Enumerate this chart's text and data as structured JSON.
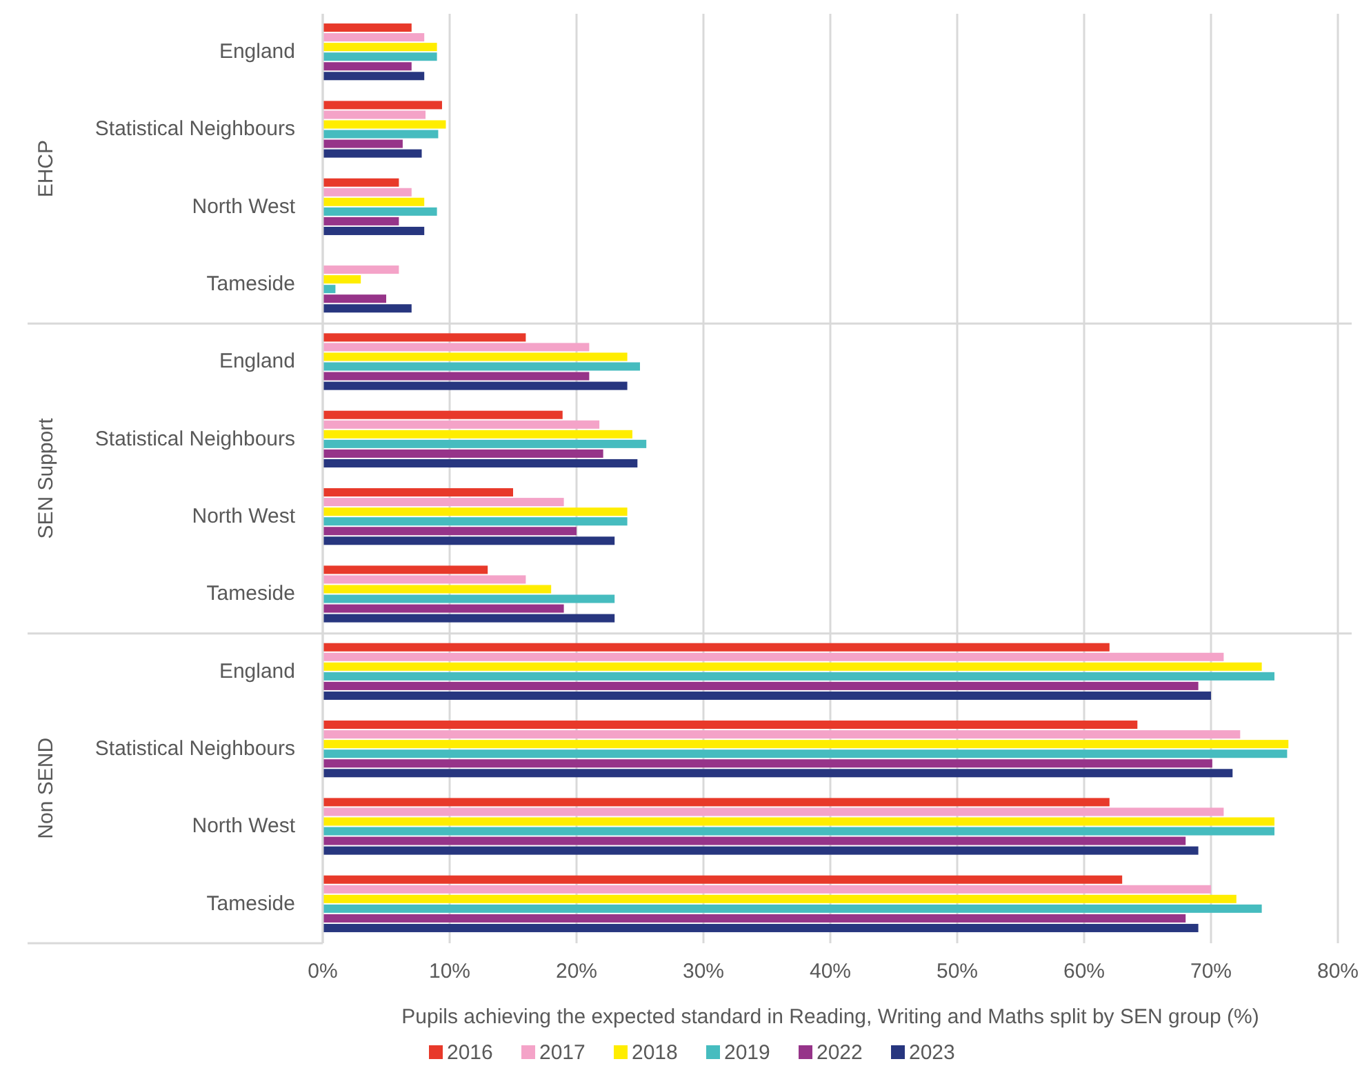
{
  "chart_data": {
    "type": "bar",
    "orientation": "horizontal",
    "xlabel": "Pupils achieving the expected standard in Reading, Writing and Maths split by SEN group (%)",
    "categories": [
      "England",
      "Statistical Neighbours",
      "North West",
      "Tameside",
      "England",
      "Statistical Neighbours",
      "North West",
      "Tameside",
      "England",
      "Statistical Neighbours",
      "North West",
      "Tameside"
    ],
    "annotations": [
      "EHCP",
      "SEN Support",
      "Non SEND"
    ],
    "series": [
      {
        "name": "2016",
        "color": "#e8392a",
        "values": [
          7,
          9.4,
          6,
          null,
          16,
          18.9,
          15,
          13,
          62,
          64.2,
          62,
          63
        ]
      },
      {
        "name": "2017",
        "color": "#f4a3c8",
        "values": [
          8,
          8.1,
          7,
          6,
          21,
          21.8,
          19,
          16,
          71,
          72.3,
          71,
          70
        ]
      },
      {
        "name": "2018",
        "color": "#ffed00",
        "values": [
          9,
          9.7,
          8,
          3,
          24,
          24.4,
          24,
          18,
          74,
          76.1,
          75,
          72
        ]
      },
      {
        "name": "2019",
        "color": "#46bcbf",
        "values": [
          9,
          9.1,
          9,
          1,
          25,
          25.5,
          24,
          23,
          75,
          76,
          75,
          74
        ]
      },
      {
        "name": "2022",
        "color": "#963489",
        "values": [
          7,
          6.3,
          6,
          5,
          21,
          22.1,
          20,
          19,
          69,
          70.1,
          68,
          68
        ]
      },
      {
        "name": "2023",
        "color": "#27367f",
        "values": [
          8,
          7.8,
          8,
          7,
          24,
          24.8,
          23,
          23,
          70,
          71.7,
          69,
          69
        ]
      }
    ],
    "xlim": [
      0,
      80
    ],
    "xticks": [
      {
        "value": 0,
        "label": "0%"
      },
      {
        "value": 10,
        "label": "10%"
      },
      {
        "value": 20,
        "label": "20%"
      },
      {
        "value": 30,
        "label": "30%"
      },
      {
        "value": 40,
        "label": "40%"
      },
      {
        "value": 50,
        "label": "50%"
      },
      {
        "value": 60,
        "label": "60%"
      },
      {
        "value": 70,
        "label": "70%"
      },
      {
        "value": 80,
        "label": "80%"
      }
    ],
    "grid": "x",
    "legend": "bottom"
  }
}
